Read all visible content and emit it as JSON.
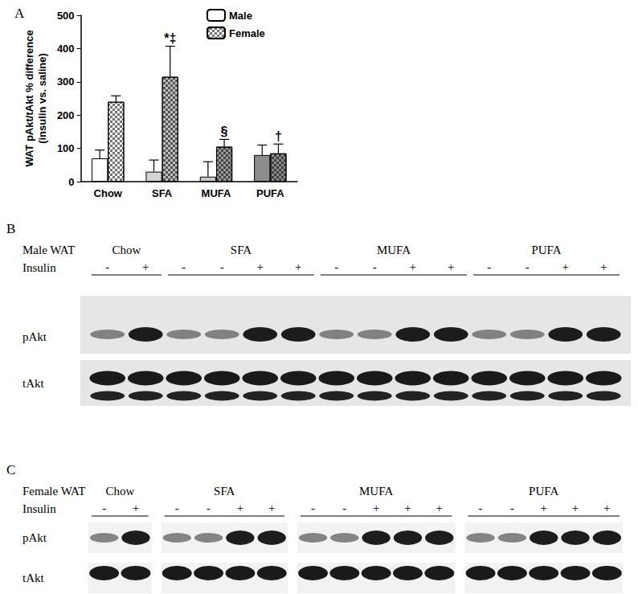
{
  "chart_data": {
    "type": "bar",
    "ylabel": "WAT pAkt/tAkt % difference\n(insulin vs. saline)",
    "categories": [
      "Chow",
      "SFA",
      "MUFA",
      "PUFA"
    ],
    "series": [
      {
        "name": "Male",
        "colors": [
          "#ffffff",
          "#d4d4d4",
          "#c8c8c8",
          "#8c8c8c"
        ],
        "values": [
          70,
          30,
          15,
          80
        ],
        "errors": [
          25,
          35,
          45,
          30
        ]
      },
      {
        "name": "Female",
        "colors": [
          "#ffffff",
          "#bdbdbd",
          "#9a9a9a",
          "#8c8c8c"
        ],
        "values": [
          240,
          315,
          105,
          85
        ],
        "errors": [
          18,
          92,
          22,
          28
        ],
        "marker": "checkered"
      }
    ],
    "ylim": [
      0,
      500
    ],
    "yticks": [
      0,
      100,
      200,
      300,
      400,
      500
    ],
    "legend": "top",
    "annotations": [
      {
        "category": "SFA",
        "series": "Female",
        "text": "*‡"
      },
      {
        "category": "MUFA",
        "series": "Female",
        "text": "§"
      },
      {
        "category": "PUFA",
        "series": "Female",
        "text": "†"
      }
    ]
  },
  "panel_label": "A",
  "blots": [
    {
      "panel": "B",
      "title": "Male WAT",
      "row_label": "Insulin",
      "split": false,
      "groups": [
        {
          "label": "Chow",
          "insulin": [
            "-",
            "+"
          ]
        },
        {
          "label": "SFA",
          "insulin": [
            "-",
            "-",
            "+",
            "+"
          ]
        },
        {
          "label": "MUFA",
          "insulin": [
            "-",
            "-",
            "+",
            "+"
          ]
        },
        {
          "label": "PUFA",
          "insulin": [
            "-",
            "-",
            "+",
            "+"
          ]
        }
      ],
      "bands": [
        "pAkt",
        "tAkt"
      ]
    },
    {
      "panel": "C",
      "title": "Female WAT",
      "row_label": "Insulin",
      "split": true,
      "groups": [
        {
          "label": "Chow",
          "insulin": [
            "-",
            "+"
          ]
        },
        {
          "label": "SFA",
          "insulin": [
            "-",
            "-",
            "+",
            "+"
          ]
        },
        {
          "label": "MUFA",
          "insulin": [
            "-",
            "-",
            "+",
            "+",
            "+"
          ]
        },
        {
          "label": "PUFA",
          "insulin": [
            "-",
            "-",
            "+",
            "+",
            "+"
          ]
        }
      ],
      "bands": [
        "pAkt",
        "tAkt"
      ]
    }
  ]
}
